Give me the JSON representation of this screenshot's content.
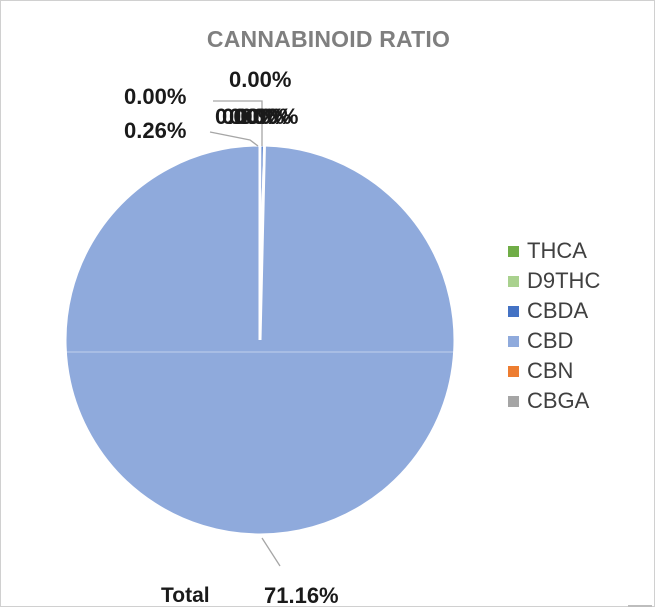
{
  "chart_data": {
    "type": "pie",
    "title": "CANNABINOID RATIO",
    "slices": [
      {
        "name": "THCA",
        "value": 0.0,
        "label": "0.00%",
        "color": "#70ad47"
      },
      {
        "name": "D9THC",
        "value": 0.0,
        "label": "0.00%",
        "color": "#a9d18e"
      },
      {
        "name": "CBDA",
        "value": 0.26,
        "label": "0.26%",
        "color": "#4472c4"
      },
      {
        "name": "CBD",
        "value": 71.16,
        "label": "71.16%",
        "color": "#8faadc"
      },
      {
        "name": "CBN",
        "value": 0.0,
        "label": "0.00%",
        "color": "#ed7d31"
      },
      {
        "name": "CBGA",
        "value": 0.0,
        "label": "0.00%",
        "color": "#a5a5a5"
      }
    ],
    "extra_labels": [
      "0.00%",
      "0.00%"
    ],
    "total_label": "Total",
    "legend_position": "right"
  }
}
